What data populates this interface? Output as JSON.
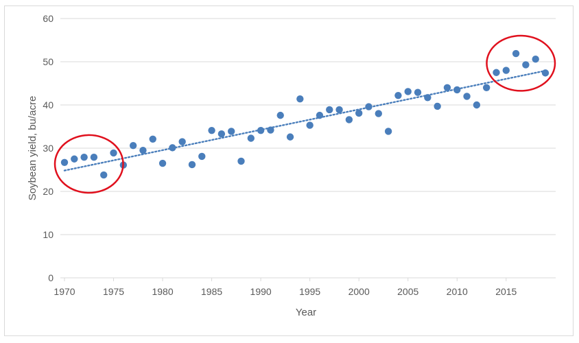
{
  "chart_data": {
    "type": "scatter",
    "title": "",
    "xlabel": "Year",
    "ylabel": "Soybean yield, bu/acre",
    "xlim": [
      1970,
      2019
    ],
    "ylim": [
      0,
      60
    ],
    "xticks": [
      1970,
      1975,
      1980,
      1985,
      1990,
      1995,
      2000,
      2005,
      2010,
      2015
    ],
    "yticks": [
      0,
      10,
      20,
      30,
      40,
      50,
      60
    ],
    "grid": "horizontal",
    "legend": "none",
    "colors": {
      "points": "#4a7ebb",
      "trend": "#4a7ebb",
      "highlight": "#e0101d",
      "grid": "#d9d9d9",
      "text": "#595959"
    },
    "series": [
      {
        "x": [
          1970,
          1971,
          1972,
          1973,
          1974,
          1975,
          1976,
          1977,
          1978,
          1979,
          1980,
          1981,
          1982,
          1983,
          1984,
          1985,
          1986,
          1987,
          1988,
          1989,
          1990,
          1991,
          1992,
          1993,
          1994,
          1995,
          1996,
          1997,
          1998,
          1999,
          2000,
          2001,
          2002,
          2003,
          2004,
          2005,
          2006,
          2007,
          2008,
          2009,
          2010,
          2011,
          2012,
          2013,
          2014,
          2015,
          2016,
          2017,
          2018,
          2019
        ],
        "y": [
          26.7,
          27.5,
          27.9,
          27.9,
          23.8,
          28.9,
          26.1,
          30.6,
          29.5,
          32.1,
          26.5,
          30.1,
          31.5,
          26.2,
          28.1,
          34.1,
          33.3,
          33.9,
          27.0,
          32.3,
          34.1,
          34.2,
          37.6,
          32.6,
          41.4,
          35.3,
          37.6,
          38.9,
          38.9,
          36.6,
          38.1,
          39.6,
          38.0,
          33.9,
          42.2,
          43.1,
          42.9,
          41.7,
          39.7,
          44.0,
          43.5,
          42.0,
          40.0,
          44.0,
          47.5,
          48.0,
          51.9,
          49.3,
          50.6,
          47.4
        ]
      }
    ],
    "trendline": {
      "type": "linear",
      "style": "dotted"
    },
    "annotations": [
      {
        "shape": "ellipse",
        "around_years": [
          1970,
          1975
        ]
      },
      {
        "shape": "ellipse",
        "around_years": [
          2014,
          2019
        ]
      }
    ]
  }
}
